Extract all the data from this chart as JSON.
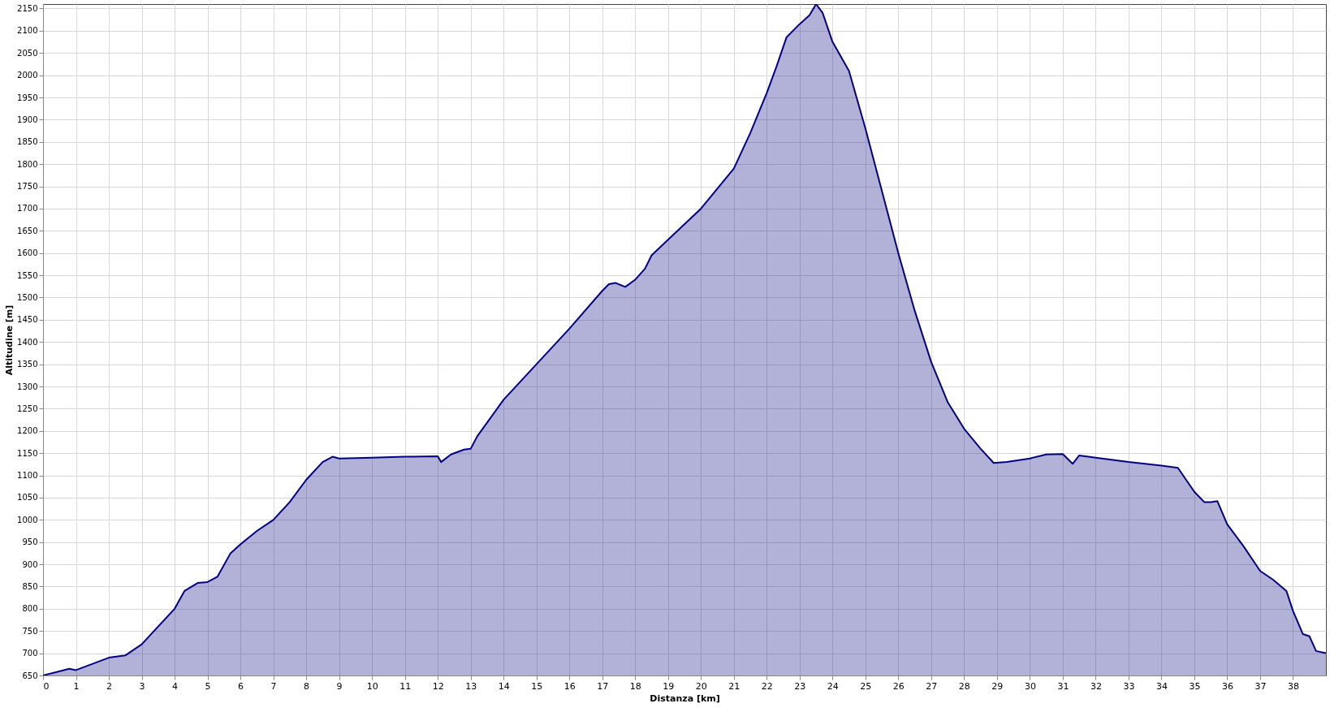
{
  "chart_data": {
    "type": "area",
    "xlabel": "Distanza [km]",
    "ylabel": "Altitudine [m]",
    "xlim": [
      0,
      39
    ],
    "ylim": [
      650,
      2160
    ],
    "xticks": [
      0,
      1,
      2,
      3,
      4,
      5,
      6,
      7,
      8,
      9,
      10,
      11,
      12,
      13,
      14,
      15,
      16,
      17,
      18,
      19,
      20,
      21,
      22,
      23,
      24,
      25,
      26,
      27,
      28,
      29,
      30,
      31,
      32,
      33,
      34,
      35,
      36,
      37,
      38
    ],
    "yticks": [
      650,
      700,
      750,
      800,
      850,
      900,
      950,
      1000,
      1050,
      1100,
      1150,
      1200,
      1250,
      1300,
      1350,
      1400,
      1450,
      1500,
      1550,
      1600,
      1650,
      1700,
      1750,
      1800,
      1850,
      1900,
      1950,
      2000,
      2050,
      2100,
      2150
    ],
    "grid": true,
    "series": [
      {
        "color": "#000080",
        "x": [
          0,
          0.8,
          1,
          2,
          2.5,
          3,
          4,
          4.3,
          4.7,
          5,
          5.3,
          5.7,
          6,
          6.5,
          7,
          7.5,
          8,
          8.5,
          8.8,
          9,
          10,
          11,
          12,
          12.1,
          12.4,
          12.8,
          13,
          13.2,
          14,
          15,
          16,
          17,
          17.2,
          17.4,
          17.7,
          18,
          18.3,
          18.5,
          19,
          20,
          21,
          21.5,
          22,
          22.3,
          22.6,
          23,
          23.3,
          23.5,
          23.7,
          24,
          24.5,
          25,
          25.5,
          26,
          26.5,
          27,
          27.5,
          28,
          28.5,
          28.9,
          29.3,
          30,
          30.5,
          31,
          31.3,
          31.5,
          32,
          33,
          34,
          34.5,
          35,
          35.3,
          35.5,
          35.7,
          36,
          36.5,
          37,
          37.4,
          37.8,
          38,
          38.3,
          38.5,
          38.7,
          39
        ],
        "values": [
          650,
          665,
          662,
          690,
          695,
          720,
          800,
          840,
          858,
          860,
          872,
          925,
          945,
          975,
          1000,
          1040,
          1090,
          1130,
          1142,
          1138,
          1140,
          1142,
          1143,
          1130,
          1147,
          1158,
          1160,
          1188,
          1270,
          1350,
          1430,
          1515,
          1530,
          1533,
          1524,
          1540,
          1565,
          1595,
          1630,
          1700,
          1790,
          1870,
          1960,
          2020,
          2085,
          2115,
          2135,
          2160,
          2140,
          2075,
          2010,
          1880,
          1740,
          1600,
          1470,
          1355,
          1265,
          1205,
          1160,
          1128,
          1130,
          1138,
          1147,
          1148,
          1126,
          1145,
          1140,
          1130,
          1122,
          1117,
          1063,
          1040,
          1040,
          1042,
          990,
          940,
          885,
          865,
          840,
          795,
          743,
          738,
          705,
          700
        ]
      }
    ]
  }
}
